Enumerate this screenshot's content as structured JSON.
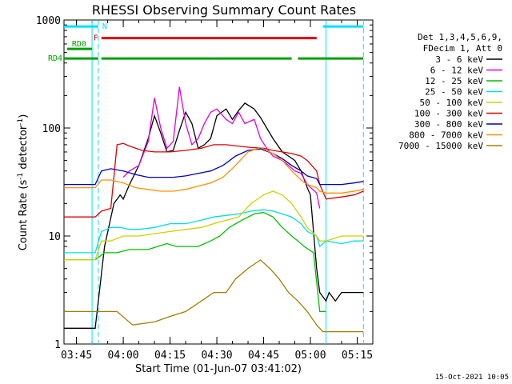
{
  "chart_data": {
    "type": "line",
    "title": "RHESSI Observing Summary Count Rates",
    "xlabel": "Start Time (01-Jun-07 03:41:02)",
    "ylabel": "Count Rate (s⁻¹ detector⁻¹)",
    "ylabel_parts": {
      "main": "Count Rate (s",
      "exp1": "-1",
      "mid": " detector",
      "exp2": "-1",
      "end": ")"
    },
    "y_scale": "log",
    "ylim": [
      1,
      1000
    ],
    "y_ticks": [
      {
        "value": 1,
        "label": "1"
      },
      {
        "value": 10,
        "label": "10"
      },
      {
        "value": 100,
        "label": "100"
      },
      {
        "value": 1000,
        "label": "1000"
      }
    ],
    "xlim": [
      "03:41",
      "05:20"
    ],
    "x_ticks": [
      "03:45",
      "04:00",
      "04:15",
      "04:30",
      "04:45",
      "05:00",
      "05:15"
    ],
    "date_stamp": "15-Oct-2021 10:05",
    "legend_header": [
      "Det 1,3,4,5,6,9,",
      "FDecim 1, Att 0"
    ],
    "legend_position": "right",
    "grid": false,
    "series": [
      {
        "name": "3 - 6 keV",
        "color": "#000000",
        "x": [
          "03:41",
          "03:51",
          "03:54",
          "03:57",
          "03:59",
          "04:00",
          "04:02",
          "04:05",
          "04:08",
          "04:10",
          "04:12",
          "04:14",
          "04:16",
          "04:18",
          "04:20",
          "04:22",
          "04:24",
          "04:26",
          "04:28",
          "04:30",
          "04:33",
          "04:35",
          "04:37",
          "04:39",
          "04:42",
          "04:44",
          "04:46",
          "04:48",
          "04:51",
          "04:53",
          "04:55",
          "04:57",
          "04:59",
          "05:00",
          "05:02",
          "05:03",
          "05:05",
          "05:06",
          "05:08",
          "05:10",
          "05:14",
          "05:17"
        ],
        "y": [
          1.4,
          1.4,
          8,
          20,
          24,
          22,
          30,
          45,
          80,
          130,
          90,
          60,
          62,
          95,
          140,
          110,
          65,
          70,
          80,
          130,
          150,
          120,
          145,
          170,
          150,
          125,
          100,
          80,
          60,
          55,
          50,
          40,
          28,
          24,
          5,
          3,
          2.5,
          3,
          2.5,
          3,
          3,
          3
        ]
      },
      {
        "name": "6 - 12 keV",
        "color": "#e000e0",
        "x": [
          "04:00",
          "04:02",
          "04:05",
          "04:08",
          "04:10",
          "04:12",
          "04:14",
          "04:16",
          "04:18",
          "04:20",
          "04:22",
          "04:24",
          "04:26",
          "04:28",
          "04:30",
          "04:33",
          "04:35",
          "04:37",
          "04:39",
          "04:42",
          "04:44",
          "04:46",
          "04:48",
          "04:51",
          "04:53",
          "04:55",
          "04:57",
          "04:59",
          "05:02",
          "05:03"
        ],
        "y": [
          35,
          40,
          45,
          75,
          190,
          100,
          65,
          75,
          240,
          110,
          70,
          80,
          110,
          140,
          150,
          120,
          110,
          140,
          110,
          120,
          80,
          65,
          55,
          50,
          45,
          40,
          38,
          30,
          25,
          18
        ]
      },
      {
        "name": "12 - 25 keV",
        "color": "#00c000",
        "x": [
          "03:41",
          "03:51",
          "03:54",
          "03:58",
          "04:02",
          "04:05",
          "04:08",
          "04:11",
          "04:14",
          "04:17",
          "04:20",
          "04:24",
          "04:28",
          "04:31",
          "04:34",
          "04:38",
          "04:42",
          "04:45",
          "04:48",
          "04:51",
          "04:54",
          "04:56",
          "04:58",
          "05:01",
          "05:03",
          "05:05"
        ],
        "y": [
          6,
          6,
          7,
          7,
          7.5,
          7.5,
          7.5,
          8,
          8.5,
          8,
          8,
          8,
          9,
          10,
          12,
          14,
          16,
          16.5,
          15,
          12,
          10,
          9,
          8,
          7,
          2,
          2
        ]
      },
      {
        "name": "25 - 50 keV",
        "color": "#00e0e0",
        "x": [
          "03:41",
          "03:51",
          "03:53",
          "03:56",
          "03:59",
          "04:02",
          "04:05",
          "04:10",
          "04:15",
          "04:20",
          "04:25",
          "04:29",
          "04:33",
          "04:37",
          "04:41",
          "04:45",
          "04:48",
          "04:51",
          "04:54",
          "04:57",
          "04:59",
          "05:02",
          "05:03",
          "05:05",
          "05:10",
          "05:14",
          "05:17"
        ],
        "y": [
          7,
          7,
          11,
          12,
          12,
          11.5,
          11.5,
          12,
          13,
          13,
          14,
          15,
          15.5,
          16,
          17,
          17.5,
          17,
          16,
          15,
          13,
          11,
          10,
          8,
          9,
          8.5,
          9,
          9
        ]
      },
      {
        "name": "50 - 100 keV",
        "color": "#d0d000",
        "x": [
          "03:41",
          "03:51",
          "03:53",
          "03:56",
          "04:00",
          "04:05",
          "04:10",
          "04:15",
          "04:20",
          "04:25",
          "04:29",
          "04:33",
          "04:37",
          "04:41",
          "04:45",
          "04:48",
          "04:51",
          "04:54",
          "04:57",
          "04:59",
          "05:02",
          "05:03",
          "05:05",
          "05:10",
          "05:14",
          "05:17"
        ],
        "y": [
          6,
          6,
          9,
          9,
          10,
          10,
          10.5,
          11,
          11.5,
          12,
          13,
          14,
          15,
          20,
          24,
          26,
          24,
          20,
          15,
          12,
          10,
          9,
          9,
          10,
          10,
          10
        ]
      },
      {
        "name": "100 - 300 keV",
        "color": "#e00000",
        "x": [
          "03:41",
          "03:51",
          "03:53",
          "03:56",
          "03:58",
          "04:00",
          "04:02",
          "04:06",
          "04:10",
          "04:15",
          "04:20",
          "04:25",
          "04:29",
          "04:33",
          "04:37",
          "04:41",
          "04:45",
          "04:48",
          "04:51",
          "04:54",
          "04:57",
          "04:59",
          "05:02",
          "05:03",
          "05:05",
          "05:10",
          "05:14",
          "05:17"
        ],
        "y": [
          15,
          15,
          17,
          18,
          70,
          72,
          68,
          62,
          60,
          60,
          62,
          65,
          70,
          70,
          68,
          66,
          65,
          62,
          60,
          58,
          55,
          50,
          40,
          30,
          22,
          23,
          24,
          26
        ]
      },
      {
        "name": "300 - 800 keV",
        "color": "#0000c0",
        "x": [
          "03:41",
          "03:51",
          "03:53",
          "03:56",
          "04:00",
          "04:04",
          "04:08",
          "04:12",
          "04:16",
          "04:20",
          "04:24",
          "04:28",
          "04:32",
          "04:36",
          "04:40",
          "04:44",
          "04:48",
          "04:51",
          "04:54",
          "04:57",
          "04:59",
          "05:02",
          "05:03",
          "05:05",
          "05:10",
          "05:14",
          "05:17"
        ],
        "y": [
          30,
          30,
          40,
          42,
          40,
          37,
          35,
          35,
          35,
          36,
          38,
          40,
          45,
          55,
          62,
          64,
          58,
          52,
          45,
          40,
          36,
          34,
          30,
          30,
          30,
          31,
          32
        ]
      },
      {
        "name": "800 - 7000 keV",
        "color": "#ff9000",
        "x": [
          "03:41",
          "03:51",
          "03:53",
          "03:56",
          "04:00",
          "04:04",
          "04:08",
          "04:12",
          "04:16",
          "04:20",
          "04:24",
          "04:28",
          "04:32",
          "04:36",
          "04:40",
          "04:44",
          "04:48",
          "04:51",
          "04:54",
          "04:57",
          "04:59",
          "05:02",
          "05:03",
          "05:05",
          "05:10",
          "05:14",
          "05:17"
        ],
        "y": [
          28,
          28,
          33,
          33,
          31,
          28,
          27,
          26,
          26,
          27,
          29,
          31,
          35,
          45,
          60,
          66,
          58,
          50,
          40,
          33,
          30,
          28,
          26,
          25,
          25,
          26,
          27
        ]
      },
      {
        "name": "7000 - 15000 keV",
        "color": "#a08000",
        "x": [
          "03:41",
          "03:51",
          "03:58",
          "04:03",
          "04:10",
          "04:15",
          "04:20",
          "04:25",
          "04:29",
          "04:33",
          "04:36",
          "04:40",
          "04:44",
          "04:47",
          "04:50",
          "04:53",
          "04:56",
          "04:59",
          "05:02",
          "05:04",
          "05:10",
          "05:17"
        ],
        "y": [
          2,
          2,
          2,
          1.5,
          1.6,
          1.8,
          2,
          2.5,
          3,
          3,
          4,
          5,
          6,
          5,
          4,
          3,
          2.5,
          2,
          1.5,
          1.3,
          1.3,
          1.3
        ]
      }
    ],
    "segments": [
      {
        "label": "N",
        "color": "#00e0ff",
        "label_color": "#00e0ff",
        "y": 870,
        "ranges": [
          [
            "03:41",
            "03:52"
          ],
          [
            "05:04",
            "05:17"
          ]
        ]
      },
      {
        "label": "F",
        "color": "#e00000",
        "label_color": "#e00000",
        "y": 680,
        "ranges": [
          [
            "03:53",
            "05:02"
          ]
        ]
      },
      {
        "label": "RD0",
        "color": "#00a000",
        "label_color": "#00a000",
        "y": 540,
        "ranges": [
          [
            "03:42",
            "03:50"
          ]
        ]
      },
      {
        "label": "RD4",
        "color": "#00a000",
        "label_color": "#00a000",
        "y": 440,
        "ranges": [
          [
            "03:41",
            "03:52"
          ],
          [
            "03:53",
            "04:29"
          ],
          [
            "04:29",
            "04:54"
          ],
          [
            "04:56",
            "05:17"
          ]
        ]
      }
    ],
    "vlines": {
      "dashed": [
        "03:52",
        "05:17"
      ],
      "solid": [
        "03:50",
        "05:05"
      ],
      "color": "#00e0ff"
    }
  }
}
